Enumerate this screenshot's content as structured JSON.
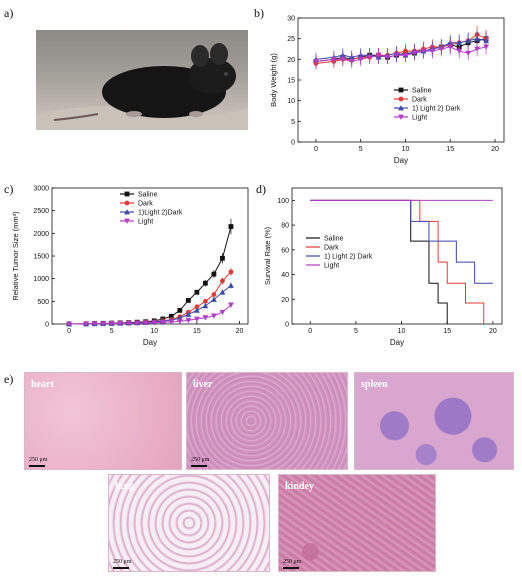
{
  "panels": {
    "a": "a)",
    "b": "b)",
    "c": "c)",
    "d": "d)",
    "e": "e)"
  },
  "histology": {
    "scale_label": "250 μm",
    "tissues": [
      "heart",
      "liver",
      "spleen",
      "lung",
      "kindey"
    ]
  },
  "chart_data": [
    {
      "type": "line",
      "panel": "b",
      "xlabel": "Day",
      "ylabel": "Body Weight (g)",
      "xlim": [
        -2,
        21
      ],
      "ylim": [
        0,
        30
      ],
      "xticks": [
        0,
        5,
        10,
        15,
        20
      ],
      "yticks": [
        0,
        5,
        10,
        15,
        20,
        25,
        30
      ],
      "legend_position": "lower-right",
      "x": [
        0,
        2,
        3,
        4,
        5,
        6,
        7,
        8,
        9,
        10,
        11,
        12,
        13,
        14,
        15,
        16,
        17,
        18,
        19
      ],
      "series": [
        {
          "name": "Saline",
          "color": "#111111",
          "marker": "square",
          "values": [
            19.5,
            20,
            20.5,
            20,
            20.5,
            21,
            21,
            20.5,
            21,
            21.5,
            21.5,
            22,
            22.5,
            23,
            23.5,
            23,
            24,
            24.5,
            25
          ]
        },
        {
          "name": "Dark",
          "color": "#e53935",
          "marker": "circle",
          "values": [
            19,
            19.5,
            20,
            20,
            20.5,
            20.5,
            21,
            21,
            21.5,
            22,
            22,
            22.5,
            23,
            23,
            23.5,
            24,
            24.5,
            26,
            25
          ]
        },
        {
          "name": "1) Light 2) Dark",
          "color": "#3949ab",
          "marker": "triangle",
          "values": [
            20,
            20.5,
            21,
            20.5,
            21,
            21,
            20.5,
            21,
            21.5,
            21,
            22,
            22,
            22.5,
            23,
            24,
            24,
            24.5,
            25,
            24.5
          ]
        },
        {
          "name": "Light",
          "color": "#b43cc8",
          "marker": "triangle-down",
          "values": [
            19.5,
            20,
            20,
            19.5,
            20,
            20.5,
            21,
            20.5,
            21,
            21,
            21.5,
            22,
            22,
            22.5,
            23,
            22,
            21.5,
            22.5,
            23
          ]
        }
      ]
    },
    {
      "type": "line",
      "panel": "c",
      "xlabel": "Day",
      "ylabel": "Relative Tumor Size (mm³)",
      "xlim": [
        -2,
        21
      ],
      "ylim": [
        0,
        3000
      ],
      "xticks": [
        0,
        5,
        10,
        15,
        20
      ],
      "yticks": [
        0,
        500,
        1000,
        1500,
        2000,
        2500,
        3000
      ],
      "legend_position": "top-center",
      "x": [
        0,
        2,
        3,
        4,
        5,
        6,
        7,
        8,
        9,
        10,
        11,
        12,
        13,
        14,
        15,
        16,
        17,
        18,
        19
      ],
      "series": [
        {
          "name": "Saline",
          "color": "#111111",
          "marker": "square",
          "values": [
            0,
            5,
            10,
            15,
            20,
            25,
            30,
            40,
            50,
            70,
            110,
            170,
            300,
            520,
            700,
            900,
            1100,
            1450,
            2150
          ]
        },
        {
          "name": "Dark",
          "color": "#e53935",
          "marker": "circle",
          "values": [
            0,
            5,
            8,
            10,
            15,
            20,
            25,
            30,
            40,
            50,
            70,
            100,
            160,
            260,
            380,
            500,
            650,
            950,
            1150
          ]
        },
        {
          "name": "1)Light 2)Dark",
          "color": "#3949ab",
          "marker": "triangle",
          "values": [
            0,
            4,
            7,
            10,
            12,
            18,
            22,
            28,
            35,
            45,
            60,
            85,
            130,
            210,
            300,
            400,
            540,
            700,
            850
          ]
        },
        {
          "name": "Light",
          "color": "#b43cc8",
          "marker": "triangle-down",
          "values": [
            0,
            3,
            5,
            8,
            10,
            12,
            15,
            18,
            22,
            28,
            35,
            45,
            60,
            80,
            110,
            140,
            180,
            260,
            420
          ]
        }
      ]
    },
    {
      "type": "line",
      "panel": "d",
      "xlabel": "Day",
      "ylabel": "Survival Rate (%)",
      "xlim": [
        -2,
        21
      ],
      "ylim": [
        0,
        110
      ],
      "xticks": [
        0,
        5,
        10,
        15,
        20
      ],
      "yticks": [
        0,
        20,
        40,
        60,
        80,
        100
      ],
      "legend_position": "center-left",
      "series": [
        {
          "name": "Saline",
          "color": "#111111",
          "points": [
            [
              0,
              100
            ],
            [
              11,
              100
            ],
            [
              11,
              67
            ],
            [
              13,
              67
            ],
            [
              13,
              33
            ],
            [
              14,
              33
            ],
            [
              14,
              17
            ],
            [
              15,
              17
            ],
            [
              15,
              0
            ]
          ]
        },
        {
          "name": "Dark",
          "color": "#e53935",
          "points": [
            [
              0,
              100
            ],
            [
              12,
              100
            ],
            [
              12,
              83
            ],
            [
              14,
              83
            ],
            [
              14,
              50
            ],
            [
              15,
              50
            ],
            [
              15,
              33
            ],
            [
              17,
              33
            ],
            [
              17,
              17
            ],
            [
              19,
              17
            ],
            [
              19,
              0
            ]
          ]
        },
        {
          "name": "1) Light 2) Dark",
          "color": "#3949ab",
          "points": [
            [
              0,
              100
            ],
            [
              11,
              100
            ],
            [
              11,
              83
            ],
            [
              13,
              83
            ],
            [
              13,
              67
            ],
            [
              16,
              67
            ],
            [
              16,
              50
            ],
            [
              18,
              50
            ],
            [
              18,
              33
            ],
            [
              20,
              33
            ]
          ]
        },
        {
          "name": "Light",
          "color": "#b43cc8",
          "points": [
            [
              0,
              100
            ],
            [
              20,
              100
            ]
          ]
        }
      ]
    }
  ]
}
